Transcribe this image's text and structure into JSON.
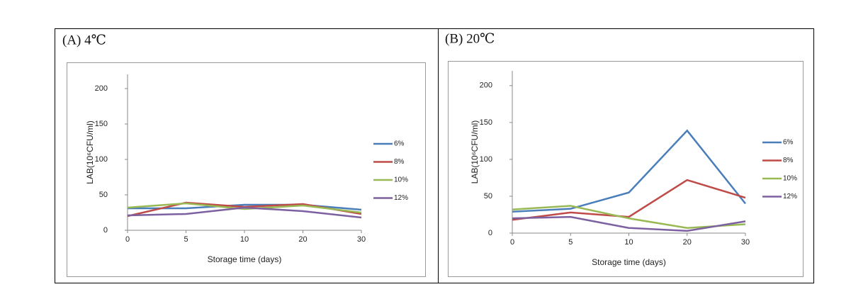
{
  "chart_data": [
    {
      "type": "line",
      "title": "(A) 4℃",
      "x_label": "Storage time (days)",
      "y_label": "LAB(10⁶CFU/ml)",
      "categories": [
        "0",
        "5",
        "10",
        "20",
        "30"
      ],
      "ylim": [
        0,
        220
      ],
      "yticks": [
        0,
        50,
        100,
        150,
        200
      ],
      "series": [
        {
          "name": "6%",
          "color": "#4a7ebb",
          "values": [
            31,
            31,
            36,
            36,
            29
          ]
        },
        {
          "name": "8%",
          "color": "#be4b48",
          "values": [
            20,
            39,
            33,
            37,
            23
          ]
        },
        {
          "name": "10%",
          "color": "#98b954",
          "values": [
            32,
            38,
            30,
            35,
            25
          ]
        },
        {
          "name": "12%",
          "color": "#7d60a0",
          "values": [
            21,
            23,
            32,
            27,
            18
          ]
        }
      ]
    },
    {
      "type": "line",
      "title": "(B) 20℃",
      "x_label": "Storage time (days)",
      "y_label": "LAB(10⁶CFU/ml)",
      "categories": [
        "0",
        "5",
        "10",
        "20",
        "30"
      ],
      "ylim": [
        0,
        220
      ],
      "yticks": [
        0,
        50,
        100,
        150,
        200
      ],
      "series": [
        {
          "name": "6%",
          "color": "#4a7ebb",
          "values": [
            29,
            33,
            55,
            139,
            40
          ]
        },
        {
          "name": "8%",
          "color": "#be4b48",
          "values": [
            18,
            28,
            22,
            72,
            48
          ]
        },
        {
          "name": "10%",
          "color": "#98b954",
          "values": [
            32,
            37,
            20,
            7,
            12
          ]
        },
        {
          "name": "12%",
          "color": "#7d60a0",
          "values": [
            20,
            22,
            7,
            3,
            16
          ]
        }
      ]
    }
  ]
}
